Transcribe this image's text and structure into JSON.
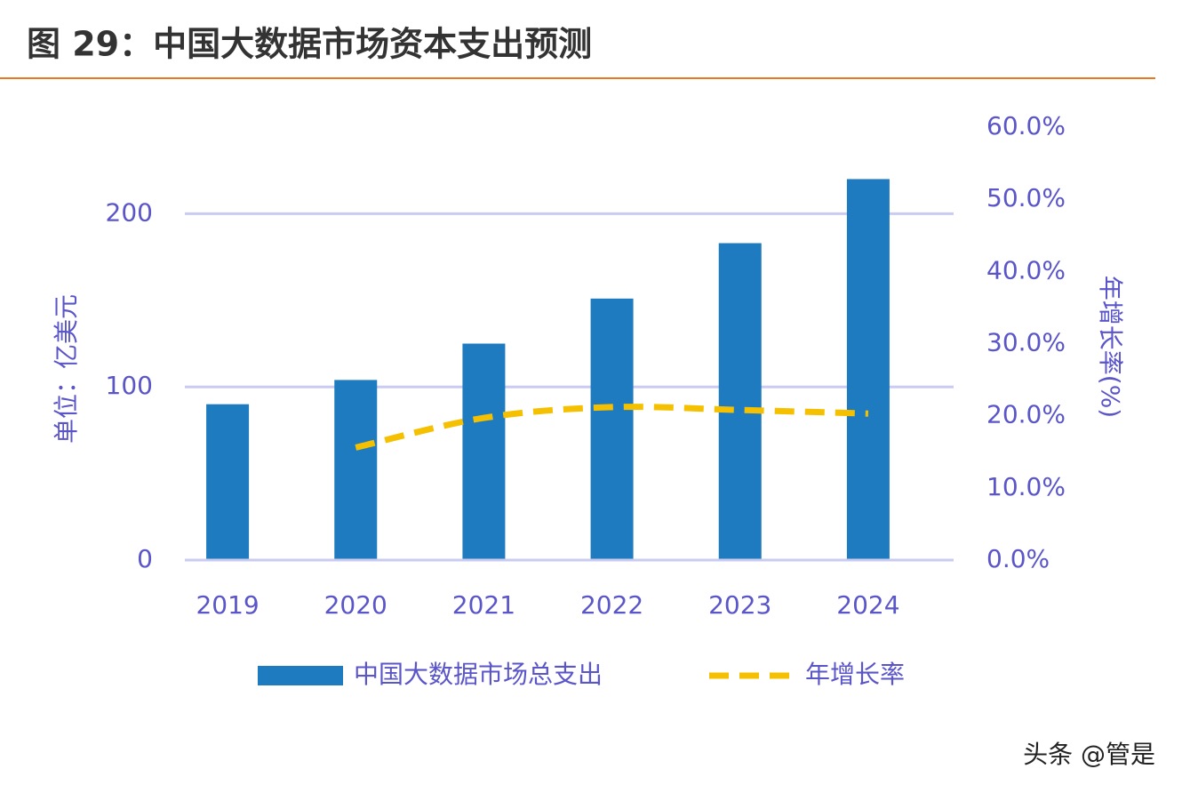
{
  "chart_data": {
    "type": "bar_line",
    "title": "图 29：中国大数据市场资本支出预测",
    "y_label": "单位：亿美元",
    "y2_label": "年增长率(%)",
    "categories": [
      "2019",
      "2020",
      "2021",
      "2022",
      "2023",
      "2024"
    ],
    "series": [
      {
        "name": "中国大数据市场总支出",
        "type": "bar",
        "color": "#1f7bbf",
        "values": [
          90,
          104,
          125,
          151,
          183,
          220
        ]
      },
      {
        "name": "年增长率",
        "type": "line",
        "color": "#f5c000",
        "axis": "y2",
        "dashed": true,
        "values": [
          null,
          15.6,
          19.7,
          21.2,
          20.8,
          20.3
        ]
      }
    ],
    "ylim": [
      0,
      250
    ],
    "yticks": [
      0,
      100,
      200
    ],
    "y2lim": [
      0,
      60
    ],
    "y2ticks": [
      {
        "value": 0,
        "label": "0.0%"
      },
      {
        "value": 10,
        "label": "10.0%"
      },
      {
        "value": 20,
        "label": "20.0%"
      },
      {
        "value": 30,
        "label": "30.0%"
      },
      {
        "value": 40,
        "label": "40.0%"
      },
      {
        "value": 50,
        "label": "50.0%"
      },
      {
        "value": 60,
        "label": "60.0%"
      }
    ],
    "grid": true,
    "legend": "bottom"
  },
  "watermark": "头条 @管是"
}
